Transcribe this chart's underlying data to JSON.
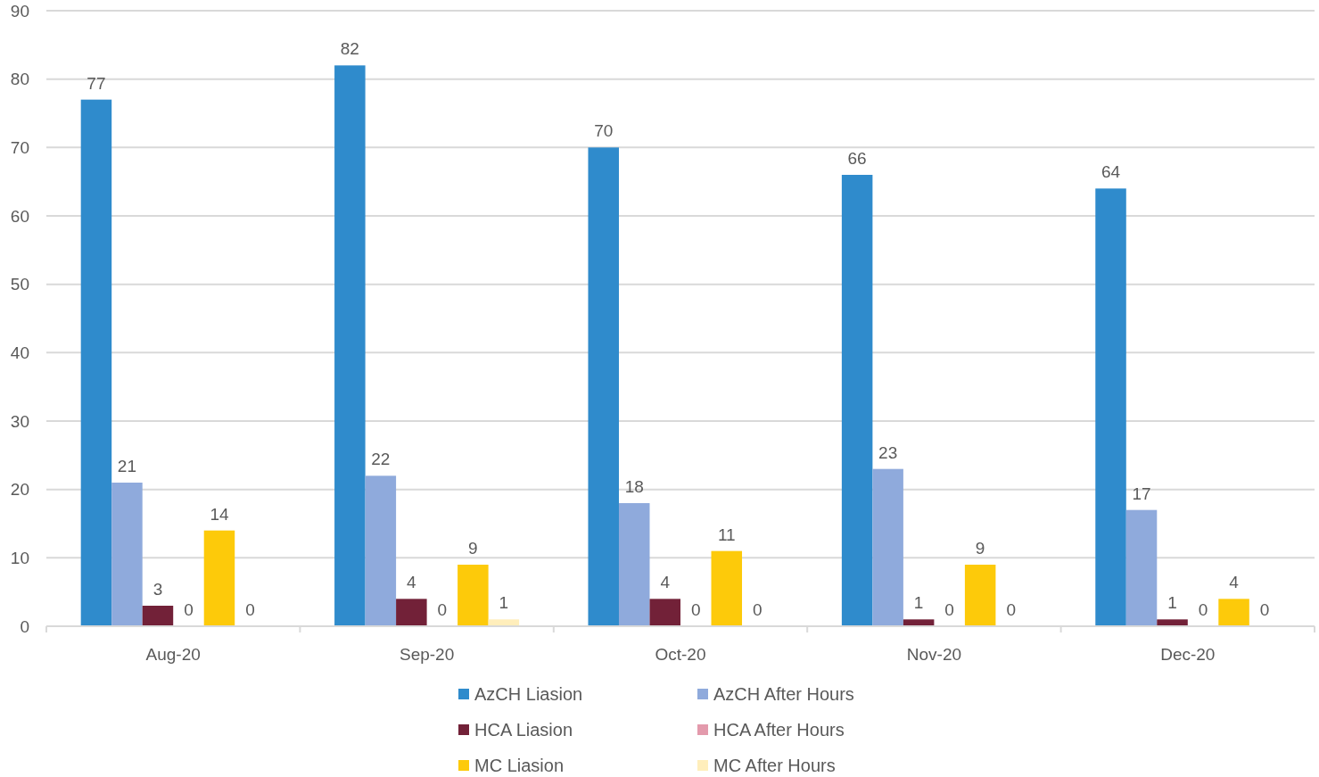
{
  "chart_data": {
    "type": "bar",
    "categories": [
      "Aug-20",
      "Sep-20",
      "Oct-20",
      "Nov-20",
      "Dec-20"
    ],
    "series": [
      {
        "name": "AzCH Liasion",
        "color": "#2f8bcc",
        "values": [
          77,
          82,
          70,
          66,
          64
        ]
      },
      {
        "name": "AzCH After Hours",
        "color": "#8faadc",
        "values": [
          21,
          22,
          18,
          23,
          17
        ]
      },
      {
        "name": "HCA Liasion",
        "color": "#722138",
        "values": [
          3,
          4,
          4,
          1,
          1
        ]
      },
      {
        "name": "HCA After Hours",
        "color": "#e39aac",
        "values": [
          0,
          0,
          0,
          0,
          0
        ]
      },
      {
        "name": "MC Liasion",
        "color": "#fdca0a",
        "values": [
          14,
          9,
          11,
          9,
          4
        ]
      },
      {
        "name": "MC After Hours",
        "color": "#ffeebb",
        "values": [
          0,
          1,
          0,
          0,
          0
        ]
      }
    ],
    "ylim": [
      0,
      90
    ],
    "yticks": [
      0,
      10,
      20,
      30,
      40,
      50,
      60,
      70,
      80,
      90
    ],
    "grid": "y",
    "legend": "bottom",
    "data_labels": true
  }
}
